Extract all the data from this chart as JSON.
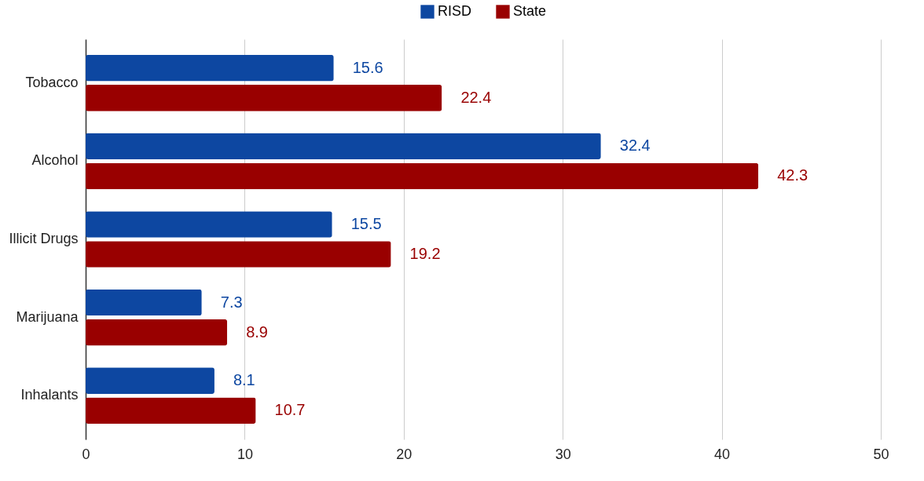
{
  "chart_data": {
    "type": "bar",
    "orientation": "horizontal",
    "categories": [
      "Tobacco",
      "Alcohol",
      "Illicit Drugs",
      "Marijuana",
      "Inhalants"
    ],
    "series": [
      {
        "name": "RISD",
        "color": "#0d47a1",
        "values": [
          15.6,
          32.4,
          15.5,
          7.3,
          8.1
        ]
      },
      {
        "name": "State",
        "color": "#990000",
        "values": [
          22.4,
          42.3,
          19.2,
          8.9,
          10.7
        ]
      }
    ],
    "xlim": [
      0,
      50
    ],
    "xticks": [
      0,
      10,
      20,
      30,
      40,
      50
    ],
    "grid": "x",
    "legend": "top",
    "data_labels": true
  }
}
